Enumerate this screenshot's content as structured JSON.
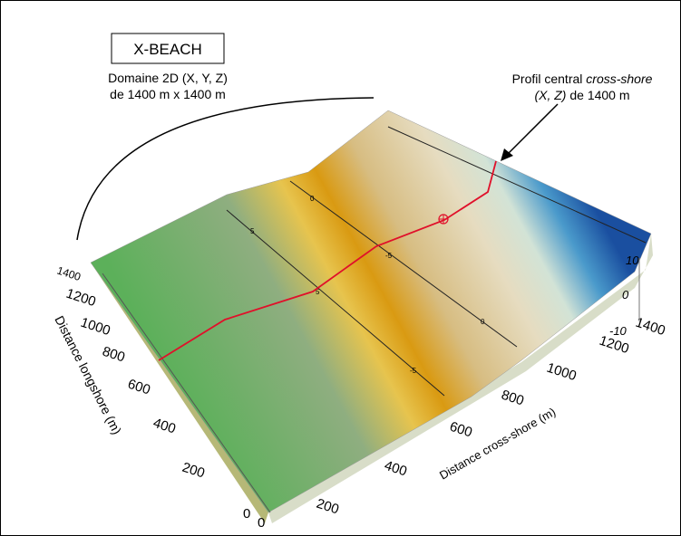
{
  "title": "X-BEACH",
  "domain_note": {
    "line1": "Domaine 2D (X, Y, Z)",
    "line2": "de 1400 m x 1400 m"
  },
  "profile_note": {
    "line1_start": "Profil central ",
    "line1_italic": "cross-shore",
    "line2_italic": "(X, Z)",
    "line2_end": " de 1400 m"
  },
  "axes": {
    "longshore": {
      "label": "Distance longshore (m)",
      "ticks": [
        "1400",
        "1200",
        "1000",
        "800",
        "600",
        "400",
        "200",
        "0"
      ]
    },
    "cross_shore": {
      "label": "Distance cross-shore (m)",
      "ticks": [
        "0",
        "200",
        "400",
        "600",
        "800",
        "1000",
        "1200",
        "1400"
      ]
    },
    "z": {
      "ticks": [
        "10",
        "0",
        "-10"
      ]
    }
  },
  "contours": {
    "labels": [
      "5",
      "5",
      "0",
      "0",
      "-5",
      "-5"
    ]
  }
}
